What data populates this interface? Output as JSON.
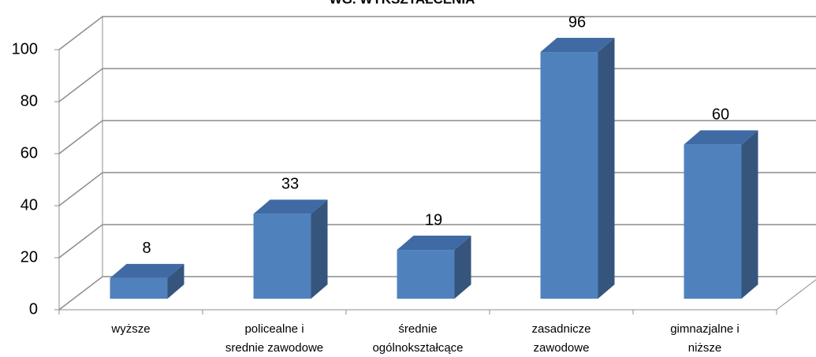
{
  "chart_data": {
    "type": "bar3d",
    "title": "WG. WYKSZTAŁCENIA",
    "categories": [
      [
        "wyższe"
      ],
      [
        "policealne i",
        "srednie zawodowe"
      ],
      [
        "średnie",
        "ogólnokształcące"
      ],
      [
        "zasadnicze",
        "zawodowe"
      ],
      [
        "gimnazjalne i",
        "niższe"
      ]
    ],
    "values": [
      8,
      33,
      19,
      96,
      60
    ],
    "color": "#4f81bd",
    "ylim": [
      0,
      100
    ],
    "yticks": [
      0,
      20,
      40,
      60,
      80,
      100
    ],
    "grid": true
  }
}
